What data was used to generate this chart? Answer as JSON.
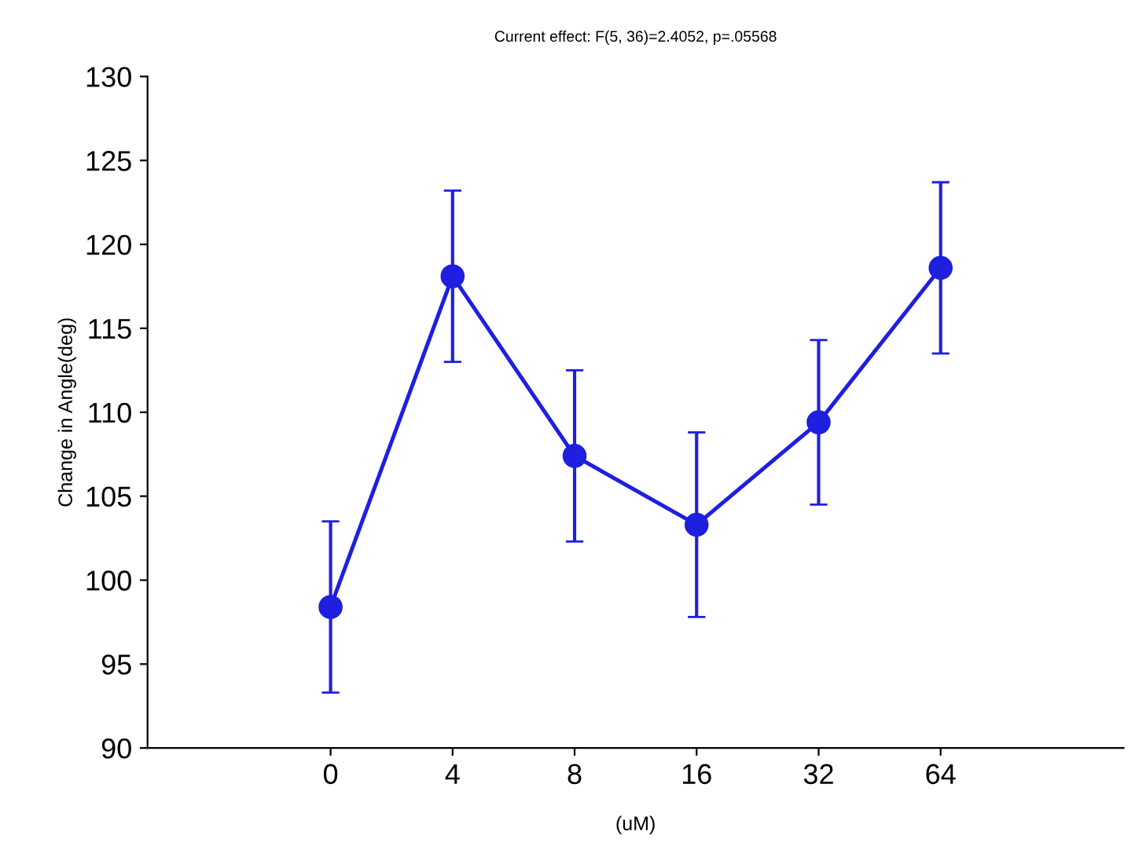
{
  "chart_data": {
    "type": "line",
    "title": "Current effect: F(5, 36)=2.4052, p=.05568",
    "xlabel": "(uM)",
    "ylabel": "Change in Angle(deg)",
    "categories": [
      "0",
      "4",
      "8",
      "16",
      "32",
      "64"
    ],
    "series": [
      {
        "color": "#1f1fe0",
        "values": [
          98.4,
          118.1,
          107.4,
          103.3,
          109.4,
          118.6
        ],
        "errors": [
          5.1,
          5.1,
          5.1,
          5.5,
          4.9,
          5.1
        ]
      }
    ],
    "ylim": [
      90,
      130
    ],
    "yticks": [
      90,
      95,
      100,
      105,
      110,
      115,
      120,
      125,
      130
    ],
    "marker": "circle",
    "line_style": "solid",
    "grid": false,
    "legend": false
  }
}
